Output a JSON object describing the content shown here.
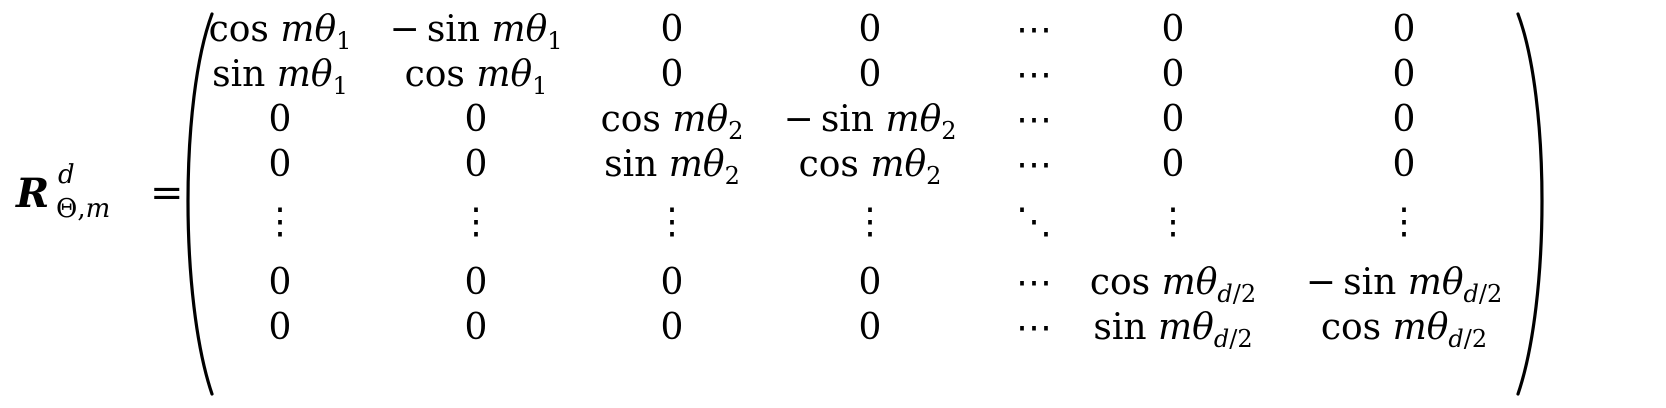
{
  "equation": {
    "lhs": {
      "symbol": "R",
      "superscript": "d",
      "subscript_theta": "Θ,",
      "subscript_m": "m",
      "equals": "="
    },
    "matrix": {
      "rows": [
        [
          "cos mθ_1",
          "−sin mθ_1",
          "0",
          "0",
          "⋯",
          "0",
          "0"
        ],
        [
          "sin mθ_1",
          "cos mθ_1",
          "0",
          "0",
          "⋯",
          "0",
          "0"
        ],
        [
          "0",
          "0",
          "cos mθ_2",
          "−sin mθ_2",
          "⋯",
          "0",
          "0"
        ],
        [
          "0",
          "0",
          "sin mθ_2",
          "cos mθ_2",
          "⋯",
          "0",
          "0"
        ],
        [
          "⋮",
          "⋮",
          "⋮",
          "⋮",
          "⋱",
          "⋮",
          "⋮"
        ],
        [
          "0",
          "0",
          "0",
          "0",
          "⋯",
          "cos mθ_{d/2}",
          "−sin mθ_{d/2}"
        ],
        [
          "0",
          "0",
          "0",
          "0",
          "⋯",
          "sin mθ_{d/2}",
          "cos mθ_{d/2}"
        ]
      ]
    }
  }
}
